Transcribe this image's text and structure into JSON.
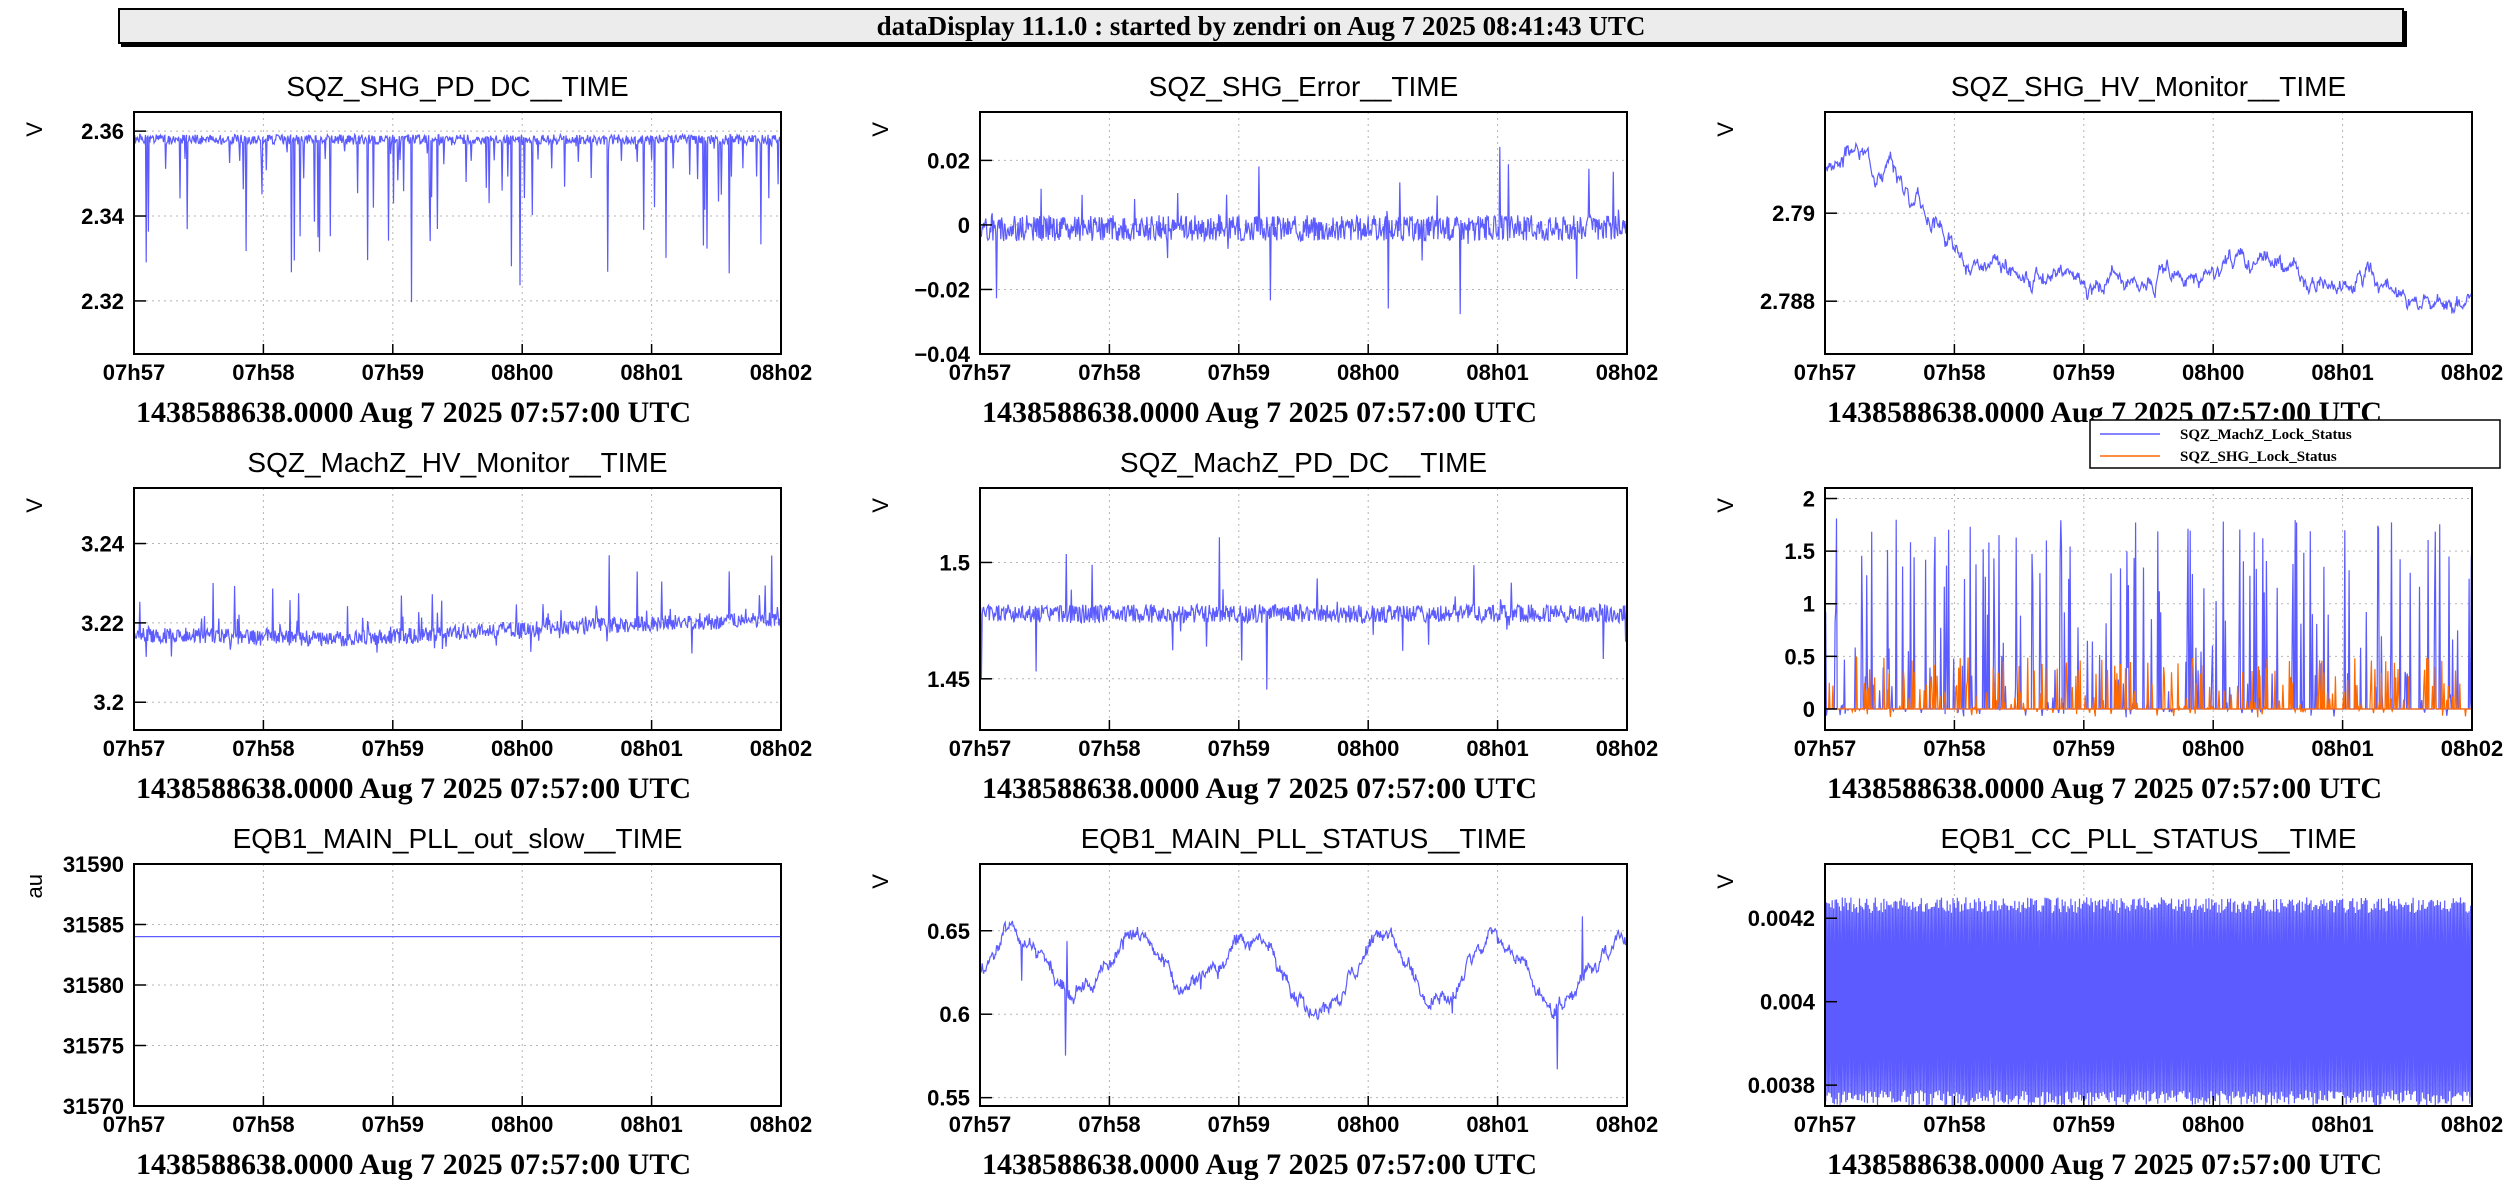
{
  "header": {
    "title": "dataDisplay 11.1.0 : started by zendri on Aug  7 2025 08:41:43 UTC"
  },
  "chart_data": [
    {
      "type": "line",
      "title": "SQZ_SHG_PD_DC__TIME",
      "ylabel": "V",
      "subtitle": "1438588638.0000 Aug 7 2025 07:57:00 UTC",
      "xticks": [
        "07h57",
        "07h58",
        "07h59",
        "08h00",
        "08h01",
        "08h02"
      ],
      "xlim": [
        0,
        300
      ],
      "ylim": [
        2.3075,
        2.3645
      ],
      "yticks": [
        2.32,
        2.34,
        2.36
      ],
      "yticklabels": [
        "2.32",
        "2.34",
        "2.36"
      ],
      "grid": true,
      "series": [
        {
          "color": "#5b5bff",
          "style": "spiky-down",
          "base": 2.358,
          "spike": 0.045,
          "noise": 0.0012,
          "seed": 1
        }
      ]
    },
    {
      "type": "line",
      "title": "SQZ_SHG_Error__TIME",
      "ylabel": "V",
      "subtitle": "1438588638.0000 Aug 7 2025 07:57:00 UTC",
      "xticks": [
        "07h57",
        "07h58",
        "07h59",
        "08h00",
        "08h01",
        "08h02"
      ],
      "xlim": [
        0,
        300
      ],
      "ylim": [
        -0.04,
        0.035
      ],
      "yticks": [
        -0.04,
        -0.02,
        0,
        0.02
      ],
      "yticklabels": [
        "−0.04",
        "−0.02",
        "0",
        "0.02"
      ],
      "grid": true,
      "series": [
        {
          "color": "#5b5bff",
          "style": "noise-band",
          "base": -0.001,
          "amp": 0.004,
          "spike": 0.03,
          "seed": 2
        }
      ]
    },
    {
      "type": "line",
      "title": "SQZ_SHG_HV_Monitor__TIME",
      "ylabel": "V",
      "subtitle": "1438588638.0000 Aug 7 2025 07:57:00 UTC",
      "xticks": [
        "07h57",
        "07h58",
        "07h59",
        "08h00",
        "08h01",
        "08h02"
      ],
      "xlim": [
        0,
        300
      ],
      "ylim": [
        2.7868,
        2.7923
      ],
      "yticks": [
        2.788,
        2.79
      ],
      "yticklabels": [
        "2.788",
        "2.79"
      ],
      "grid": true,
      "series": [
        {
          "color": "#5b5bff",
          "style": "drift",
          "points": [
            [
              0,
              2.7911
            ],
            [
              15,
              2.7914
            ],
            [
              30,
              2.791
            ],
            [
              45,
              2.7902
            ],
            [
              58,
              2.7894
            ],
            [
              70,
              2.7885
            ],
            [
              90,
              2.7887
            ],
            [
              110,
              2.7886
            ],
            [
              130,
              2.7884
            ],
            [
              150,
              2.7887
            ],
            [
              170,
              2.7885
            ],
            [
              190,
              2.7888
            ],
            [
              210,
              2.7889
            ],
            [
              230,
              2.7883
            ],
            [
              250,
              2.7885
            ],
            [
              270,
              2.7878
            ],
            [
              290,
              2.7879
            ],
            [
              300,
              2.7881
            ]
          ],
          "noise": 0.00025,
          "seed": 3
        }
      ]
    },
    {
      "type": "line",
      "title": "SQZ_MachZ_HV_Monitor__TIME",
      "ylabel": "V",
      "subtitle": "1438588638.0000 Aug 7 2025 07:57:00 UTC",
      "xticks": [
        "07h57",
        "07h58",
        "07h59",
        "08h00",
        "08h01",
        "08h02"
      ],
      "xlim": [
        0,
        300
      ],
      "ylim": [
        3.193,
        3.254
      ],
      "yticks": [
        3.2,
        3.22,
        3.24
      ],
      "yticklabels": [
        "3.2",
        "3.22",
        "3.24"
      ],
      "grid": true,
      "series": [
        {
          "color": "#5b5bff",
          "style": "spiky-up",
          "points": [
            [
              0,
              3.217
            ],
            [
              100,
              3.216
            ],
            [
              200,
              3.219
            ],
            [
              300,
              3.221
            ]
          ],
          "spike": 0.025,
          "noise": 0.002,
          "seed": 4
        }
      ]
    },
    {
      "type": "line",
      "title": "SQZ_MachZ_PD_DC__TIME",
      "ylabel": "V",
      "subtitle": "1438588638.0000 Aug 7 2025 07:57:00 UTC",
      "xticks": [
        "07h57",
        "07h58",
        "07h59",
        "08h00",
        "08h01",
        "08h02"
      ],
      "xlim": [
        0,
        300
      ],
      "ylim": [
        1.428,
        1.532
      ],
      "yticks": [
        1.45,
        1.5
      ],
      "yticklabels": [
        "1.45",
        "1.5"
      ],
      "grid": true,
      "series": [
        {
          "color": "#5b5bff",
          "style": "noise-band",
          "base": 1.478,
          "amp": 0.004,
          "spike": 0.04,
          "seed": 5
        }
      ]
    },
    {
      "type": "line",
      "title": "",
      "ylabel": "V",
      "subtitle": "1438588638.0000 Aug 7 2025 07:57:00 UTC",
      "xticks": [
        "07h57",
        "07h58",
        "07h59",
        "08h00",
        "08h01",
        "08h02"
      ],
      "xlim": [
        0,
        300
      ],
      "ylim": [
        -0.2,
        2.1
      ],
      "yticks": [
        0,
        0.5,
        1,
        1.5,
        2
      ],
      "yticklabels": [
        "0",
        "0.5",
        "1",
        "1.5",
        "2"
      ],
      "grid": true,
      "legend": "top-right",
      "series": [
        {
          "name": "SQZ_MachZ_Lock_Status",
          "color": "#5b5bff",
          "style": "status",
          "base": 0,
          "spike": 1.85,
          "seed": 6
        },
        {
          "name": "SQZ_SHG_Lock_Status",
          "color": "#ff6a00",
          "style": "status",
          "base": 0,
          "spike": 0.5,
          "seed": 7
        }
      ]
    },
    {
      "type": "line",
      "title": "EQB1_MAIN_PLL_out_slow__TIME",
      "ylabel": "au",
      "subtitle": "1438588638.0000 Aug 7 2025 07:57:00 UTC",
      "xticks": [
        "07h57",
        "07h58",
        "07h59",
        "08h00",
        "08h01",
        "08h02"
      ],
      "xlim": [
        0,
        300
      ],
      "ylim": [
        31570,
        31590
      ],
      "yticks": [
        31570,
        31575,
        31580,
        31585,
        31590
      ],
      "yticklabels": [
        "31570",
        "31575",
        "31580",
        "31585",
        "31590"
      ],
      "grid": true,
      "series": [
        {
          "color": "#5b5bff",
          "style": "flat",
          "base": 31584
        }
      ]
    },
    {
      "type": "line",
      "title": "EQB1_MAIN_PLL_STATUS__TIME",
      "ylabel": "V",
      "subtitle": "1438588638.0000 Aug 7 2025 07:57:00 UTC",
      "xticks": [
        "07h57",
        "07h58",
        "07h59",
        "08h00",
        "08h01",
        "08h02"
      ],
      "xlim": [
        0,
        300
      ],
      "ylim": [
        0.545,
        0.69
      ],
      "yticks": [
        0.55,
        0.6,
        0.65
      ],
      "yticklabels": [
        "0.55",
        "0.6",
        "0.65"
      ],
      "grid": true,
      "series": [
        {
          "color": "#5b5bff",
          "style": "wander",
          "base": 0.625,
          "amp": 0.018,
          "spike": 0.05,
          "noise": 0.005,
          "seed": 8
        }
      ]
    },
    {
      "type": "line",
      "title": "EQB1_CC_PLL_STATUS__TIME",
      "ylabel": "V",
      "subtitle": "1438588638.0000 Aug 7 2025 07:57:00 UTC",
      "xticks": [
        "07h57",
        "07h58",
        "07h59",
        "08h00",
        "08h01",
        "08h02"
      ],
      "xlim": [
        0,
        300
      ],
      "ylim": [
        0.00375,
        0.00433
      ],
      "yticks": [
        0.0038,
        0.004,
        0.0042
      ],
      "yticklabels": [
        "0.0038",
        "0.004",
        "0.0042"
      ],
      "grid": true,
      "series": [
        {
          "color": "#5b5bff",
          "style": "band",
          "base": 0.004,
          "amp": 0.00025,
          "seed": 9
        }
      ]
    }
  ]
}
